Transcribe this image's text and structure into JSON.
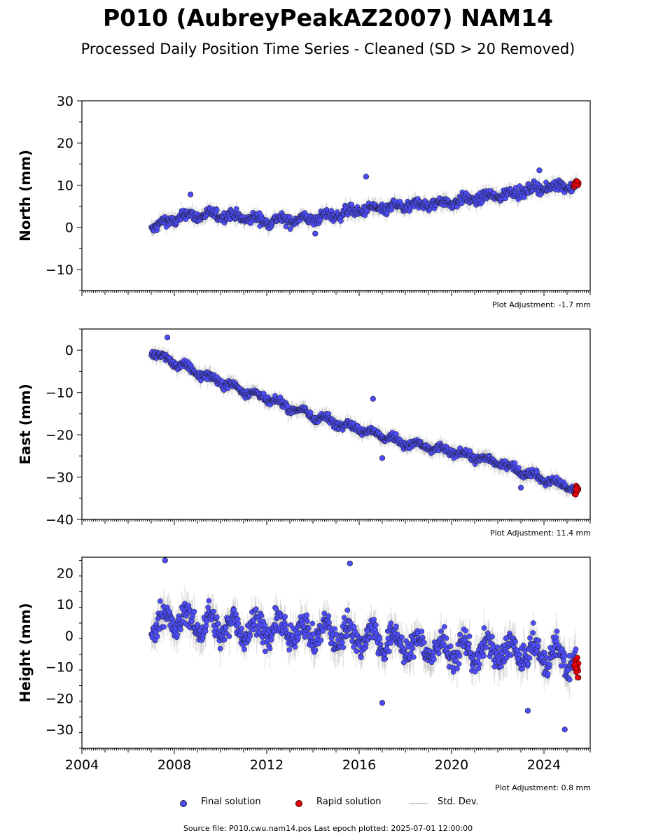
{
  "title": "P010 (AubreyPeakAZ2007) NAM14",
  "subtitle": "Processed Daily Position Time Series - Cleaned (SD > 20 Removed)",
  "chart_data": [
    {
      "type": "scatter",
      "ylabel": "North (mm)",
      "xlim": [
        2004,
        2026
      ],
      "ylim": [
        -15,
        30
      ],
      "yticks": [
        -10,
        0,
        10,
        20,
        30
      ],
      "adjustment": "Plot Adjustment: -1.7 mm",
      "series": [
        {
          "name": "Final solution",
          "trend": {
            "x": [
              2007.0,
              2008.5,
              2010.0,
              2012.0,
              2014.0,
              2016.0,
              2018.0,
              2020.0,
              2022.0,
              2024.0,
              2025.4
            ],
            "y": [
              0.0,
              2.8,
              3.0,
              1.5,
              2.0,
              4.0,
              5.0,
              6.0,
              7.5,
              9.5,
              10.0
            ]
          },
          "scatter": 1.6,
          "outliers": [
            {
              "x": 2008.7,
              "y": 7.8
            },
            {
              "x": 2016.3,
              "y": 12.0
            },
            {
              "x": 2023.8,
              "y": 13.5
            },
            {
              "x": 2014.1,
              "y": -1.5
            }
          ]
        },
        {
          "name": "Rapid solution",
          "x_range": [
            2025.3,
            2025.5
          ],
          "y_range": [
            9.5,
            11.0
          ]
        }
      ]
    },
    {
      "type": "scatter",
      "ylabel": "East (mm)",
      "xlim": [
        2004,
        2026
      ],
      "ylim": [
        -40,
        5
      ],
      "yticks": [
        -40,
        -30,
        -20,
        -10,
        0
      ],
      "adjustment": "Plot Adjustment: 11.4 mm",
      "series": [
        {
          "name": "Final solution",
          "trend": {
            "x": [
              2007.0,
              2008.0,
              2010.0,
              2012.0,
              2014.0,
              2016.0,
              2018.0,
              2020.0,
              2022.0,
              2024.0,
              2025.4
            ],
            "y": [
              -0.5,
              -3.0,
              -7.5,
              -11.5,
              -15.5,
              -18.5,
              -22.0,
              -24.0,
              -26.5,
              -30.5,
              -33.0
            ]
          },
          "scatter": 1.2,
          "outliers": [
            {
              "x": 2007.7,
              "y": 3.0
            },
            {
              "x": 2016.6,
              "y": -11.5
            },
            {
              "x": 2017.0,
              "y": -25.5
            },
            {
              "x": 2023.0,
              "y": -32.5
            }
          ]
        },
        {
          "name": "Rapid solution",
          "x_range": [
            2025.3,
            2025.5
          ],
          "y_range": [
            -34.5,
            -32.0
          ]
        }
      ]
    },
    {
      "type": "scatter",
      "ylabel": "Height (mm)",
      "xlim": [
        2004,
        2026
      ],
      "ylim": [
        -36,
        25
      ],
      "yticks": [
        -30,
        -20,
        -10,
        0,
        10,
        20
      ],
      "adjustment": "Plot Adjustment: 0.8 mm",
      "xticks": [
        "2004",
        "2008",
        "2012",
        "2016",
        "2020",
        "2024"
      ],
      "series": [
        {
          "name": "Final solution",
          "trend": {
            "x": [
              2007.0,
              2008.0,
              2010.0,
              2012.0,
              2014.0,
              2016.0,
              2018.0,
              2020.0,
              2022.0,
              2024.0,
              2025.4
            ],
            "y": [
              4.0,
              5.0,
              3.0,
              2.0,
              1.0,
              0.0,
              -3.0,
              -5.0,
              -5.0,
              -6.0,
              -8.0
            ]
          },
          "scatter": 5.5,
          "outliers": [
            {
              "x": 2007.6,
              "y": 24.0
            },
            {
              "x": 2015.6,
              "y": 23.0
            },
            {
              "x": 2023.3,
              "y": -24.0
            },
            {
              "x": 2024.9,
              "y": -30.0
            },
            {
              "x": 2017.0,
              "y": -21.5
            }
          ]
        },
        {
          "name": "Rapid solution",
          "x_range": [
            2025.3,
            2025.5
          ],
          "y_range": [
            -14.0,
            -7.0
          ]
        }
      ]
    }
  ],
  "legend": {
    "final": "Final solution",
    "rapid": "Rapid solution",
    "stddev": "Std. Dev."
  },
  "colors": {
    "final_fill": "#4d4dff",
    "rapid_fill": "#e8000b",
    "stddev": "#9a9a9a"
  },
  "source": "Source file: P010.cwu.nam14.pos  Last epoch plotted: 2025-07-01 12:00:00"
}
